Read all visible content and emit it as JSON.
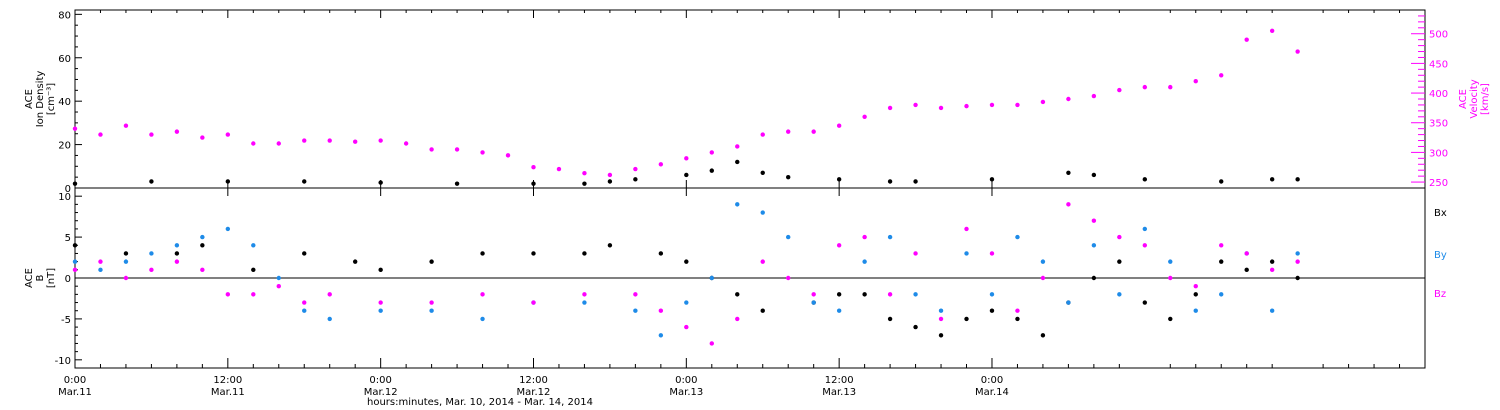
{
  "chart_data": [
    {
      "type": "scatter",
      "panel": "top",
      "ylabel_left": [
        "ACE",
        "Ion Density",
        "[cm⁻³]"
      ],
      "ylabel_right": [
        "ACE",
        "Velocity",
        "[km/s]"
      ],
      "y_left_ticks": [
        "0",
        "20",
        "40",
        "60",
        "80"
      ],
      "y_right_ticks": [
        "250",
        "300",
        "350",
        "400",
        "450",
        "500"
      ],
      "ylim_left": [
        0,
        82
      ],
      "ylim_right": [
        240,
        540
      ],
      "colors": {
        "density": "#000000",
        "velocity": "#ff00ff"
      },
      "series": [
        {
          "series_id": "density",
          "axis": "left",
          "x": [
            0,
            6,
            12,
            18,
            24,
            30,
            36,
            40,
            42,
            44,
            48,
            50,
            52,
            54,
            56,
            60,
            64,
            66,
            72,
            78,
            80,
            84,
            90,
            94,
            96
          ],
          "y": [
            2,
            3,
            3,
            3,
            2.5,
            2,
            2,
            2,
            3,
            4,
            6,
            8,
            12,
            7,
            5,
            4,
            3,
            3,
            4,
            7,
            6,
            4,
            3,
            4,
            4
          ]
        },
        {
          "series_id": "velocity",
          "axis": "right",
          "x": [
            0,
            2,
            4,
            6,
            8,
            10,
            12,
            14,
            16,
            18,
            20,
            22,
            24,
            26,
            28,
            30,
            32,
            34,
            36,
            38,
            40,
            42,
            44,
            46,
            48,
            50,
            52,
            54,
            56,
            58,
            60,
            62,
            64,
            66,
            68,
            70,
            72,
            74,
            76,
            78,
            80,
            82,
            84,
            86,
            88,
            90,
            92,
            94,
            96
          ],
          "y": [
            340,
            330,
            345,
            330,
            335,
            325,
            330,
            315,
            315,
            320,
            320,
            318,
            320,
            315,
            305,
            305,
            300,
            295,
            275,
            272,
            265,
            262,
            272,
            280,
            290,
            300,
            310,
            330,
            335,
            335,
            345,
            360,
            375,
            380,
            375,
            378,
            380,
            380,
            385,
            390,
            395,
            405,
            410,
            410,
            420,
            430,
            490,
            505,
            470
          ]
        }
      ]
    },
    {
      "type": "scatter",
      "panel": "bottom",
      "ylabel_left": [
        "ACE",
        "B",
        "[nT]"
      ],
      "y_left_ticks": [
        "-10",
        "-5",
        "0",
        "5",
        "10"
      ],
      "ylim": [
        -11,
        11
      ],
      "legend": [
        "Bx",
        "By",
        "Bz"
      ],
      "legend_position": "right",
      "colors": {
        "Bx": "#000000",
        "By": "#1e8be8",
        "Bz": "#ff00ff"
      },
      "series": [
        {
          "series_id": "Bx",
          "x": [
            0,
            4,
            8,
            10,
            14,
            18,
            22,
            24,
            28,
            32,
            36,
            40,
            42,
            46,
            48,
            50,
            52,
            54,
            58,
            60,
            62,
            64,
            66,
            68,
            70,
            72,
            74,
            76,
            78,
            80,
            82,
            84,
            86,
            88,
            90,
            92,
            94,
            96
          ],
          "y": [
            4,
            3,
            3,
            4,
            1,
            3,
            2,
            1,
            2,
            3,
            3,
            3,
            4,
            3,
            2,
            0,
            -2,
            -4,
            -3,
            -2,
            -2,
            -5,
            -6,
            -7,
            -5,
            -4,
            -5,
            -7,
            -3,
            0,
            2,
            -3,
            -5,
            -2,
            2,
            1,
            2,
            0
          ]
        },
        {
          "series_id": "By",
          "x": [
            0,
            2,
            4,
            6,
            8,
            10,
            12,
            14,
            16,
            18,
            20,
            24,
            28,
            32,
            36,
            40,
            44,
            46,
            48,
            50,
            52,
            54,
            56,
            58,
            60,
            62,
            64,
            66,
            68,
            70,
            72,
            74,
            76,
            78,
            80,
            82,
            84,
            86,
            88,
            90,
            92,
            94,
            96
          ],
          "y": [
            2,
            1,
            2,
            3,
            4,
            5,
            6,
            4,
            0,
            -4,
            -5,
            -4,
            -4,
            -5,
            -3,
            -3,
            -4,
            -7,
            -3,
            0,
            9,
            8,
            5,
            -3,
            -4,
            2,
            5,
            -2,
            -4,
            3,
            -2,
            5,
            2,
            -3,
            4,
            -2,
            6,
            2,
            -4,
            -2,
            3,
            -4,
            3
          ]
        },
        {
          "series_id": "Bz",
          "x": [
            0,
            2,
            4,
            6,
            8,
            10,
            12,
            14,
            16,
            18,
            20,
            24,
            28,
            32,
            36,
            40,
            44,
            46,
            48,
            50,
            52,
            54,
            56,
            58,
            60,
            62,
            64,
            66,
            68,
            70,
            72,
            74,
            76,
            78,
            80,
            82,
            84,
            86,
            88,
            90,
            92,
            94,
            96
          ],
          "y": [
            1,
            2,
            0,
            1,
            2,
            1,
            -2,
            -2,
            -1,
            -3,
            -2,
            -3,
            -3,
            -2,
            -3,
            -2,
            -2,
            -4,
            -6,
            -8,
            -5,
            2,
            0,
            -2,
            4,
            5,
            -2,
            3,
            -5,
            6,
            3,
            -4,
            0,
            9,
            7,
            5,
            4,
            0,
            -1,
            4,
            3,
            1,
            2
          ]
        }
      ]
    }
  ],
  "x_axis": {
    "xlim_hours": [
      0,
      106
    ],
    "ticks": [
      {
        "h": 0,
        "time": "0:00",
        "date": "Mar.11"
      },
      {
        "h": 12,
        "time": "12:00",
        "date": "Mar.11"
      },
      {
        "h": 24,
        "time": "0:00",
        "date": "Mar.12"
      },
      {
        "h": 36,
        "time": "12:00",
        "date": "Mar.12"
      },
      {
        "h": 48,
        "time": "0:00",
        "date": "Mar.13"
      },
      {
        "h": 60,
        "time": "12:00",
        "date": "Mar.13"
      },
      {
        "h": 72,
        "time": "0:00",
        "date": "Mar.14"
      }
    ],
    "label": "hours:minutes, Mar. 10, 2014 - Mar. 14, 2014"
  }
}
